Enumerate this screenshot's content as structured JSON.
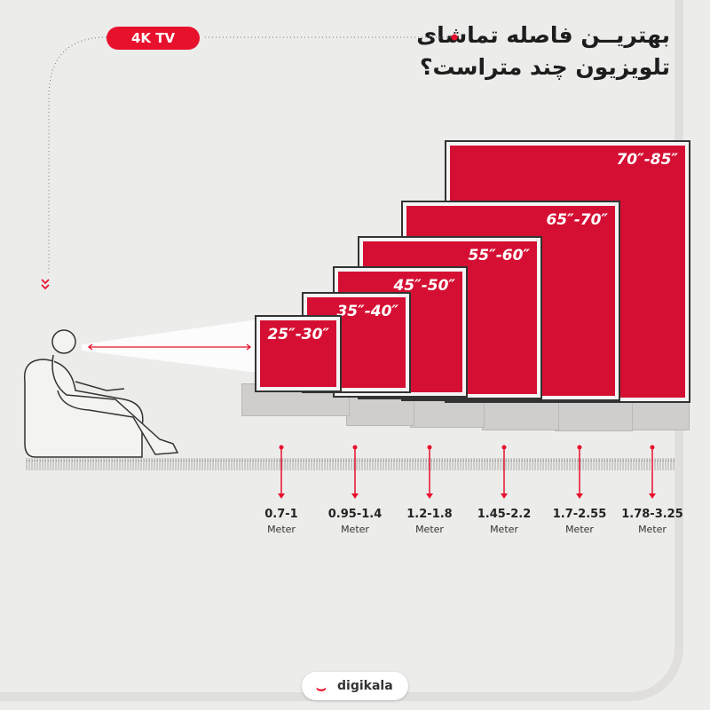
{
  "badge": "4K TV",
  "title": {
    "line1": "بهتریــن فاصله تماشای",
    "line2": "تلویزیون چند متراست؟"
  },
  "tvs": [
    {
      "size": "25″-30″",
      "distance": "0.7-1",
      "unit": "Meter"
    },
    {
      "size": "35″-40″",
      "distance": "0.95-1.4",
      "unit": "Meter"
    },
    {
      "size": "45″-50″",
      "distance": "1.2-1.8",
      "unit": "Meter"
    },
    {
      "size": "55″-60″",
      "distance": "1.45-2.2",
      "unit": "Meter"
    },
    {
      "size": "65″-70″",
      "distance": "1.7-2.55",
      "unit": "Meter"
    },
    {
      "size": "70″-85″",
      "distance": "1.78-3.25",
      "unit": "Meter"
    }
  ],
  "brand": "digikala",
  "colors": {
    "accent": "#e8112d",
    "screen": "#d50f33",
    "background": "#ececeb"
  }
}
